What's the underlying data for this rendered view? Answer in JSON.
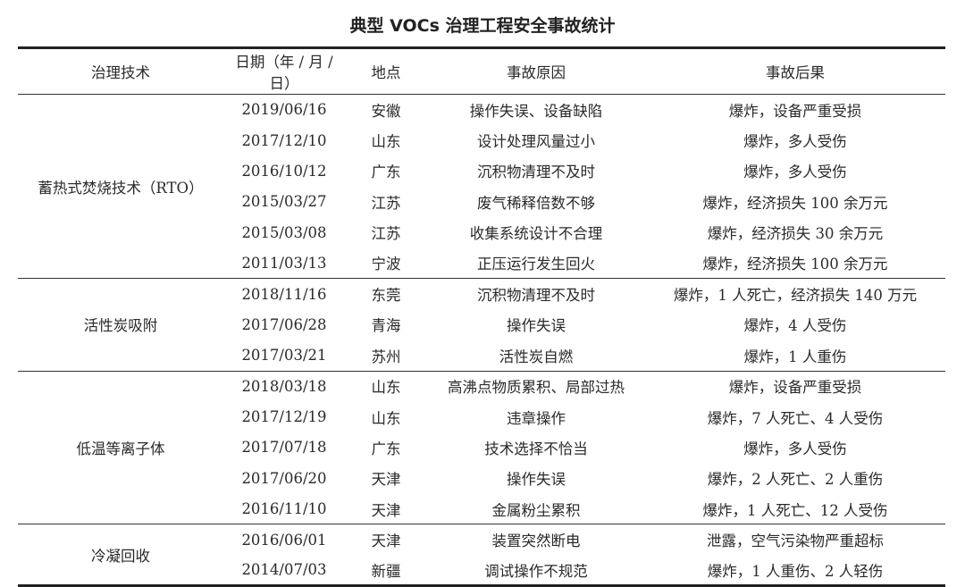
{
  "title": "典型 VOCs 治理工程安全事故统计",
  "columns": [
    "治理技术",
    "日期（年 / 月 / 日）",
    "地点",
    "事故原因",
    "事故后果"
  ],
  "groups": [
    {
      "technology": "蓄热式焚烧技术（RTO）",
      "rows": [
        [
          "2019/06/16",
          "安徽",
          "操作失误、设备缺陷",
          "爆炸，设备严重受损"
        ],
        [
          "2017/12/10",
          "山东",
          "设计处理风量过小",
          "爆炸，多人受伤"
        ],
        [
          "2016/10/12",
          "广东",
          "沉积物清理不及时",
          "爆炸，多人受伤"
        ],
        [
          "2015/03/27",
          "江苏",
          "废气稀释倍数不够",
          "爆炸，经济损失 100 余万元"
        ],
        [
          "2015/03/08",
          "江苏",
          "收集系统设计不合理",
          "爆炸，经济损失 30 余万元"
        ],
        [
          "2011/03/13",
          "宁波",
          "正压运行发生回火",
          "爆炸，经济损失 100 余万元"
        ]
      ]
    },
    {
      "technology": "活性炭吸附",
      "rows": [
        [
          "2018/11/16",
          "东莞",
          "沉积物清理不及时",
          "爆炸，1 人死亡，经济损失 140 万元"
        ],
        [
          "2017/06/28",
          "青海",
          "操作失误",
          "爆炸，4 人受伤"
        ],
        [
          "2017/03/21",
          "苏州",
          "活性炭自燃",
          "爆炸，1 人重伤"
        ]
      ]
    },
    {
      "technology": "低温等离子体",
      "rows": [
        [
          "2018/03/18",
          "山东",
          "高沸点物质累积、局部过热",
          "爆炸，设备严重受损"
        ],
        [
          "2017/12/19",
          "山东",
          "违章操作",
          "爆炸，7 人死亡、4 人受伤"
        ],
        [
          "2017/07/18",
          "广东",
          "技术选择不恰当",
          "爆炸，多人受伤"
        ],
        [
          "2017/06/20",
          "天津",
          "操作失误",
          "爆炸，2 人死亡、2 人重伤"
        ],
        [
          "2016/11/10",
          "天津",
          "金属粉尘累积",
          "爆炸，1 人死亡、12 人受伤"
        ]
      ]
    },
    {
      "technology": "冷凝回收",
      "rows": [
        [
          "2016/06/01",
          "天津",
          "装置突然断电",
          "泄露，空气污染物严重超标"
        ],
        [
          "2014/07/03",
          "新疆",
          "调试操作不规范",
          "爆炸，1 人重伤、2 人轻伤"
        ]
      ]
    }
  ]
}
